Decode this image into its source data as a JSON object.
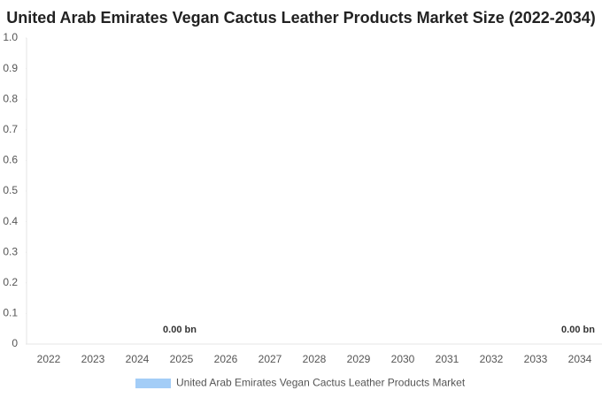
{
  "chart_data": {
    "type": "bar",
    "title": "United Arab Emirates Vegan Cactus Leather Products Market Size (2022-2034)",
    "categories": [
      "2022",
      "2023",
      "2024",
      "2025",
      "2026",
      "2027",
      "2028",
      "2029",
      "2030",
      "2031",
      "2032",
      "2033",
      "2034"
    ],
    "series": [
      {
        "name": "United Arab Emirates Vegan Cactus Leather Products Market",
        "color": "#a3cdf7",
        "values": [
          0,
          0,
          0,
          0,
          0,
          0,
          0,
          0,
          0,
          0,
          0,
          0,
          0
        ],
        "value_labels": [
          null,
          null,
          null,
          "0.00 bn",
          null,
          null,
          null,
          null,
          null,
          null,
          null,
          null,
          "0.00 bn"
        ]
      }
    ],
    "ylim": [
      0,
      1
    ],
    "yticks": [
      0,
      0.1,
      0.2,
      0.3,
      0.4,
      0.5,
      0.6,
      0.7,
      0.8,
      0.9,
      {
        "value": 1,
        "label": "1.0"
      }
    ],
    "grid": false
  }
}
